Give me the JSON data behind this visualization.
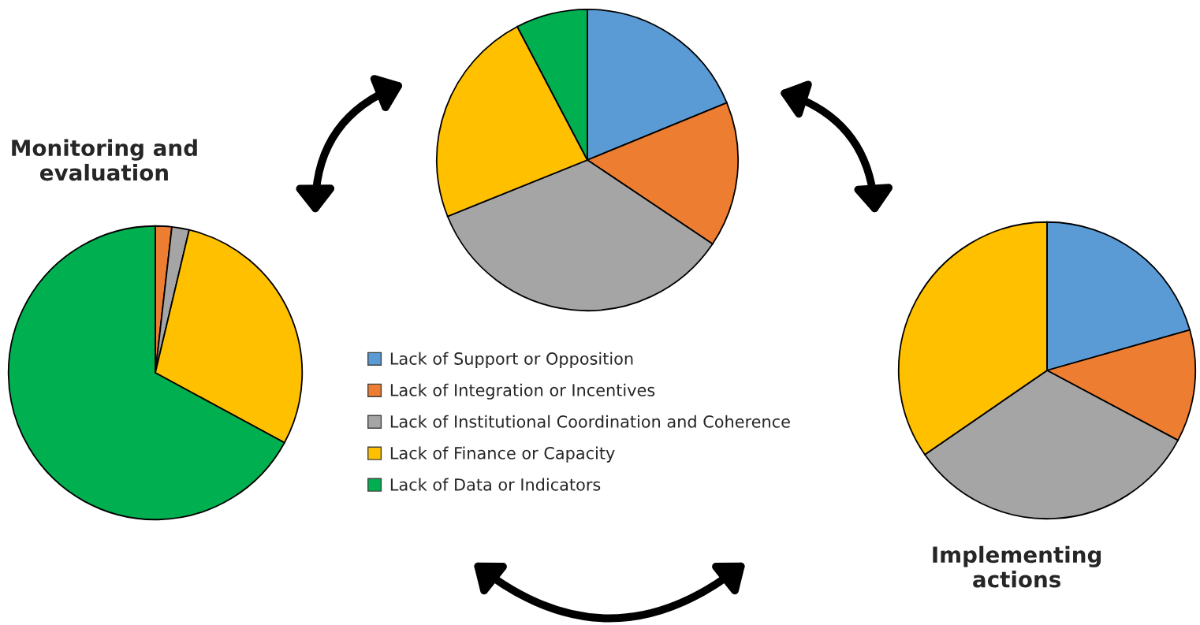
{
  "chart_data": [
    {
      "type": "pie",
      "title": "Monitoring and evaluation",
      "categories": [
        "Lack of Support or Opposition",
        "Lack of Integration or Incentives",
        "Lack of Institutional Coordination and Coherence",
        "Lack of Finance or Capacity",
        "Lack of Data or Indicators"
      ],
      "values": [
        0,
        1.8,
        1.9,
        29.2,
        67.1
      ],
      "colors": [
        "#5b9bd5",
        "#ed7d31",
        "#a5a5a5",
        "#ffc000",
        "#00b050"
      ],
      "legend": "right"
    },
    {
      "type": "pie",
      "categories": [
        null,
        null,
        null,
        null,
        null
      ],
      "values": [
        18.8,
        15.6,
        34.5,
        23.4,
        7.7
      ],
      "colors": [
        "#5b9bd5",
        "#ed7d31",
        "#a5a5a5",
        "#ffc000",
        "#00b050"
      ]
    },
    {
      "type": "pie",
      "title": "Implementing actions",
      "categories": [
        null,
        null,
        null,
        null,
        null
      ],
      "values": [
        20.6,
        12.2,
        32.6,
        34.6,
        0
      ],
      "colors": [
        "#5b9bd5",
        "#ed7d31",
        "#a5a5a5",
        "#ffc000",
        "#00b050"
      ]
    }
  ]
}
